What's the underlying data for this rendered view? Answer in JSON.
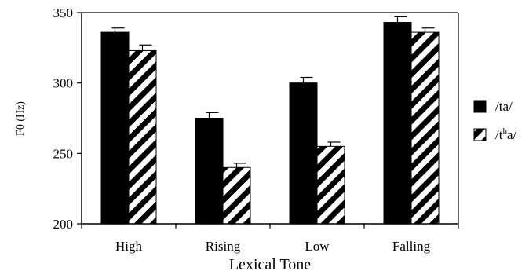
{
  "chart_data": {
    "type": "bar",
    "title": "",
    "xlabel": "Lexical Tone",
    "ylabel": "F0 (Hz)",
    "ylim": [
      200,
      350
    ],
    "yticks": [
      200,
      250,
      300,
      350
    ],
    "grid": false,
    "legend_position": "right",
    "categories": [
      "High",
      "Rising",
      "Low",
      "Falling"
    ],
    "series": [
      {
        "name": "/ta/",
        "fill": "solid-black",
        "values": [
          336,
          275,
          300,
          343
        ],
        "error": [
          3,
          4,
          4,
          4
        ]
      },
      {
        "name_parts": [
          "/t",
          "h",
          "a/"
        ],
        "fill": "diagonal-hatch",
        "values": [
          323,
          240,
          255,
          336
        ],
        "error": [
          4,
          3,
          3,
          3
        ]
      }
    ],
    "colors": {
      "bar_dark": "#000000",
      "hatch_light": "#ffffff",
      "axis": "#000000"
    }
  }
}
